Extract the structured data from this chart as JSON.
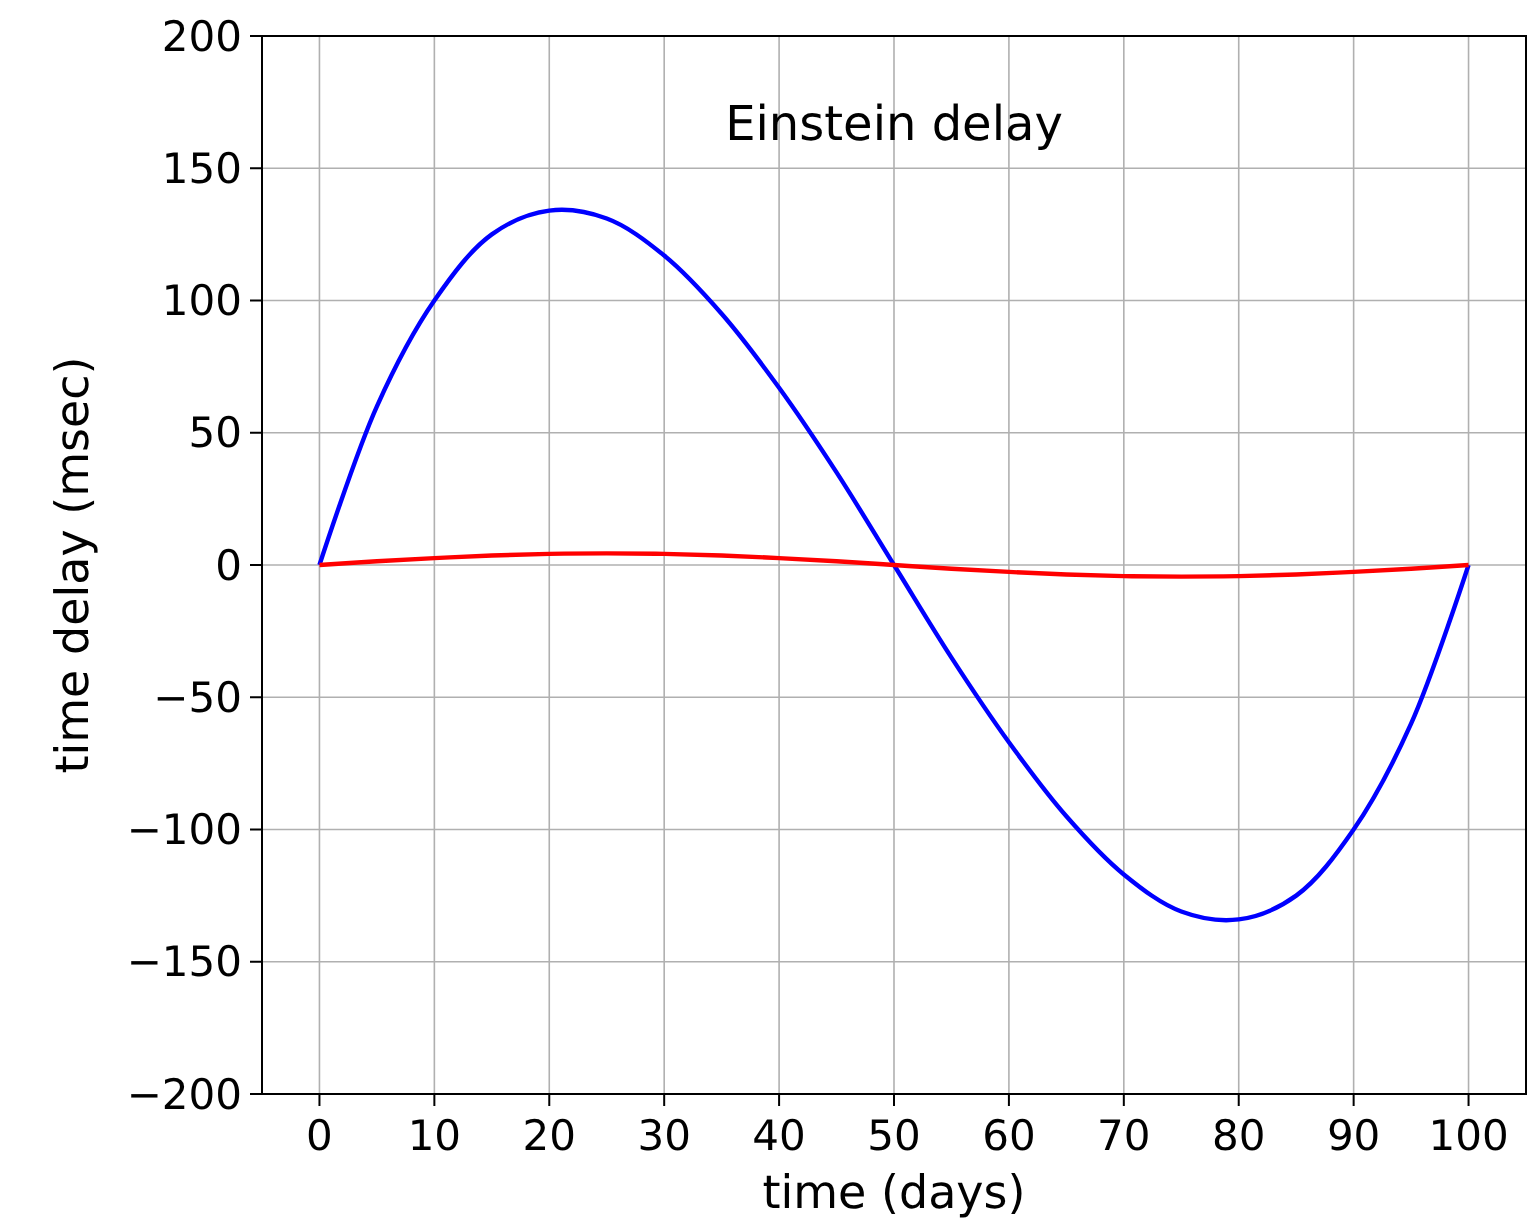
{
  "chart_data": {
    "type": "line",
    "title": "Einstein delay",
    "xlabel": "time (days)",
    "ylabel": "time delay (msec)",
    "x": [
      0,
      5,
      10,
      15,
      20,
      25,
      30,
      35,
      40,
      45,
      50,
      55,
      60,
      65,
      70,
      75,
      80,
      85,
      90,
      95,
      100
    ],
    "series": [
      {
        "color": "#0000ff",
        "values": [
          0,
          60,
          100,
          125,
          134,
          131,
          117,
          95,
          67,
          35,
          0,
          -35,
          -67,
          -95,
          -117,
          -131,
          -134,
          -125,
          -100,
          -60,
          0
        ]
      },
      {
        "color": "#ff0000",
        "values": [
          0,
          1.4,
          2.6,
          3.6,
          4.2,
          4.4,
          4.2,
          3.6,
          2.6,
          1.4,
          0,
          -1.4,
          -2.6,
          -3.6,
          -4.2,
          -4.4,
          -4.2,
          -3.6,
          -2.6,
          -1.4,
          0
        ]
      }
    ],
    "xlim": [
      -5,
      105
    ],
    "ylim": [
      -200,
      200
    ],
    "xticks": [
      0,
      10,
      20,
      30,
      40,
      50,
      60,
      70,
      80,
      90,
      100
    ],
    "yticks": [
      -200,
      -150,
      -100,
      -50,
      0,
      50,
      100,
      150,
      200
    ],
    "grid": true,
    "marker": "none",
    "line_style": "solid"
  }
}
